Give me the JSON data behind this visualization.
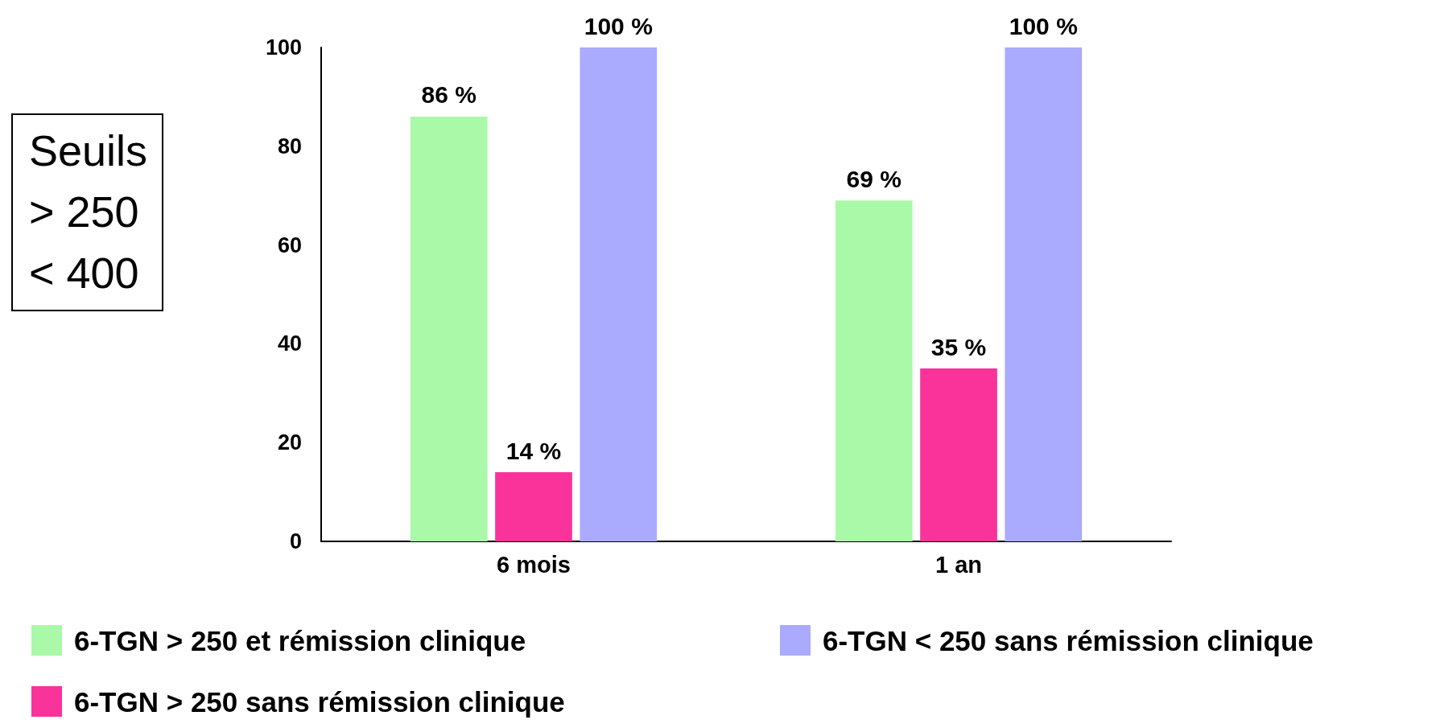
{
  "chart_data": {
    "type": "bar",
    "categories": [
      "6 mois",
      "1 an"
    ],
    "series": [
      {
        "name": "6-TGN > 250 et rémission clinique",
        "color": "#aaf9a8",
        "values": [
          86,
          69
        ],
        "value_labels": [
          "86 %",
          "69 %"
        ]
      },
      {
        "name": "6-TGN > 250 sans rémission clinique",
        "color": "#f93399",
        "values": [
          14,
          35
        ],
        "value_labels": [
          "14 %",
          "35 %"
        ]
      },
      {
        "name": "6-TGN < 250 sans rémission clinique",
        "color": "#aaaafe",
        "values": [
          100,
          100
        ],
        "value_labels": [
          "100 %",
          "100 %"
        ]
      }
    ],
    "ylim": [
      0,
      100
    ],
    "yticks": [
      0,
      20,
      40,
      60,
      80,
      100
    ],
    "grid": false,
    "legend": "bottom",
    "annotations": [
      "Seuils",
      "> 250",
      "< 400"
    ]
  }
}
